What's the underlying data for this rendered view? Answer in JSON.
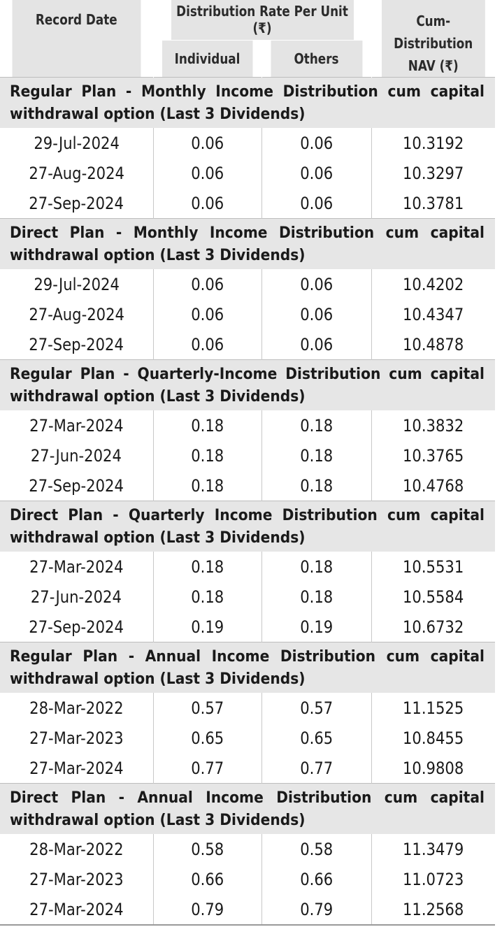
{
  "headers": {
    "record_date": "Record Date",
    "rate": "Distribution Rate Per Unit (₹)",
    "individual": "Individual",
    "others": "Others",
    "nav_line1": "Cum-Distribution",
    "nav_line2": "NAV (₹)"
  },
  "sections": [
    {
      "title": "Regular Plan - Monthly Income Distribution cum capital withdrawal option (Last 3 Dividends)",
      "rows": [
        {
          "date": "29-Jul-2024",
          "individual": "0.06",
          "others": "0.06",
          "nav": "10.3192"
        },
        {
          "date": "27-Aug-2024",
          "individual": "0.06",
          "others": "0.06",
          "nav": "10.3297"
        },
        {
          "date": "27-Sep-2024",
          "individual": "0.06",
          "others": "0.06",
          "nav": "10.3781"
        }
      ]
    },
    {
      "title": "Direct Plan - Monthly Income Distribution cum capital withdrawal option (Last 3 Dividends)",
      "rows": [
        {
          "date": "29-Jul-2024",
          "individual": "0.06",
          "others": "0.06",
          "nav": "10.4202"
        },
        {
          "date": "27-Aug-2024",
          "individual": "0.06",
          "others": "0.06",
          "nav": "10.4347"
        },
        {
          "date": "27-Sep-2024",
          "individual": "0.06",
          "others": "0.06",
          "nav": "10.4878"
        }
      ]
    },
    {
      "title": "Regular Plan - Quarterly-Income Distribution cum capital withdrawal option (Last 3 Dividends)",
      "rows": [
        {
          "date": "27-Mar-2024",
          "individual": "0.18",
          "others": "0.18",
          "nav": "10.3832"
        },
        {
          "date": "27-Jun-2024",
          "individual": "0.18",
          "others": "0.18",
          "nav": "10.3765"
        },
        {
          "date": "27-Sep-2024",
          "individual": "0.18",
          "others": "0.18",
          "nav": "10.4768"
        }
      ]
    },
    {
      "title": "Direct Plan - Quarterly Income Distribution cum capital withdrawal option (Last 3 Dividends)",
      "rows": [
        {
          "date": "27-Mar-2024",
          "individual": "0.18",
          "others": "0.18",
          "nav": "10.5531"
        },
        {
          "date": "27-Jun-2024",
          "individual": "0.18",
          "others": "0.18",
          "nav": "10.5584"
        },
        {
          "date": "27-Sep-2024",
          "individual": "0.19",
          "others": "0.19",
          "nav": "10.6732"
        }
      ]
    },
    {
      "title": "Regular Plan - Annual Income Distribution cum capital withdrawal option (Last 3 Dividends)",
      "rows": [
        {
          "date": "28-Mar-2022",
          "individual": "0.57",
          "others": "0.57",
          "nav": "11.1525"
        },
        {
          "date": "27-Mar-2023",
          "individual": "0.65",
          "others": "0.65",
          "nav": "10.8455"
        },
        {
          "date": "27-Mar-2024",
          "individual": "0.77",
          "others": "0.77",
          "nav": "10.9808"
        }
      ]
    },
    {
      "title": "Direct Plan - Annual Income Distribution cum capital withdrawal option (Last 3 Dividends)",
      "rows": [
        {
          "date": "28-Mar-2022",
          "individual": "0.58",
          "others": "0.58",
          "nav": "11.3479"
        },
        {
          "date": "27-Mar-2023",
          "individual": "0.66",
          "others": "0.66",
          "nav": "11.0723"
        },
        {
          "date": "27-Mar-2024",
          "individual": "0.79",
          "others": "0.79",
          "nav": "11.2568"
        }
      ]
    }
  ]
}
